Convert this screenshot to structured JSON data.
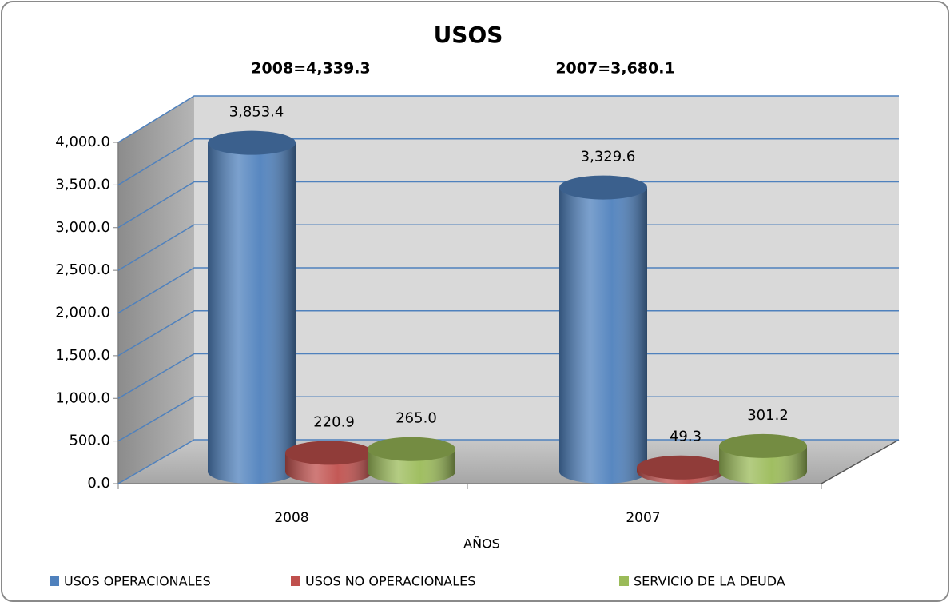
{
  "chart_data": {
    "type": "bar3d",
    "title": "USOS",
    "annotations": [
      "2008=4,339.3",
      "2007=3,680.1"
    ],
    "x_label": "AÑOS",
    "categories": [
      "2008",
      "2007"
    ],
    "series": [
      {
        "name": "USOS OPERACIONALES",
        "color": "#4f81bd",
        "values": [
          3853.4,
          3329.6
        ],
        "value_labels": [
          "3,853.4",
          "3,329.6"
        ]
      },
      {
        "name": "USOS NO OPERACIONALES",
        "color": "#c0504d",
        "values": [
          220.9,
          49.3
        ],
        "value_labels": [
          "220.9",
          "49.3"
        ]
      },
      {
        "name": "SERVICIO DE LA DEUDA",
        "color": "#9bbb59",
        "values": [
          265.0,
          301.2
        ],
        "value_labels": [
          "265.0",
          "301.2"
        ]
      }
    ],
    "ylim": [
      0,
      4000
    ],
    "yticks": [
      {
        "value": 0,
        "label": "0.0"
      },
      {
        "value": 500,
        "label": "500.0"
      },
      {
        "value": 1000,
        "label": "1,000.0"
      },
      {
        "value": 1500,
        "label": "1,500.0"
      },
      {
        "value": 2000,
        "label": "2,000.0"
      },
      {
        "value": 2500,
        "label": "2,500.0"
      },
      {
        "value": 3000,
        "label": "3,000.0"
      },
      {
        "value": 3500,
        "label": "3,500.0"
      },
      {
        "value": 4000,
        "label": "4,000.0"
      }
    ],
    "grid": true,
    "legend": "bottom"
  }
}
